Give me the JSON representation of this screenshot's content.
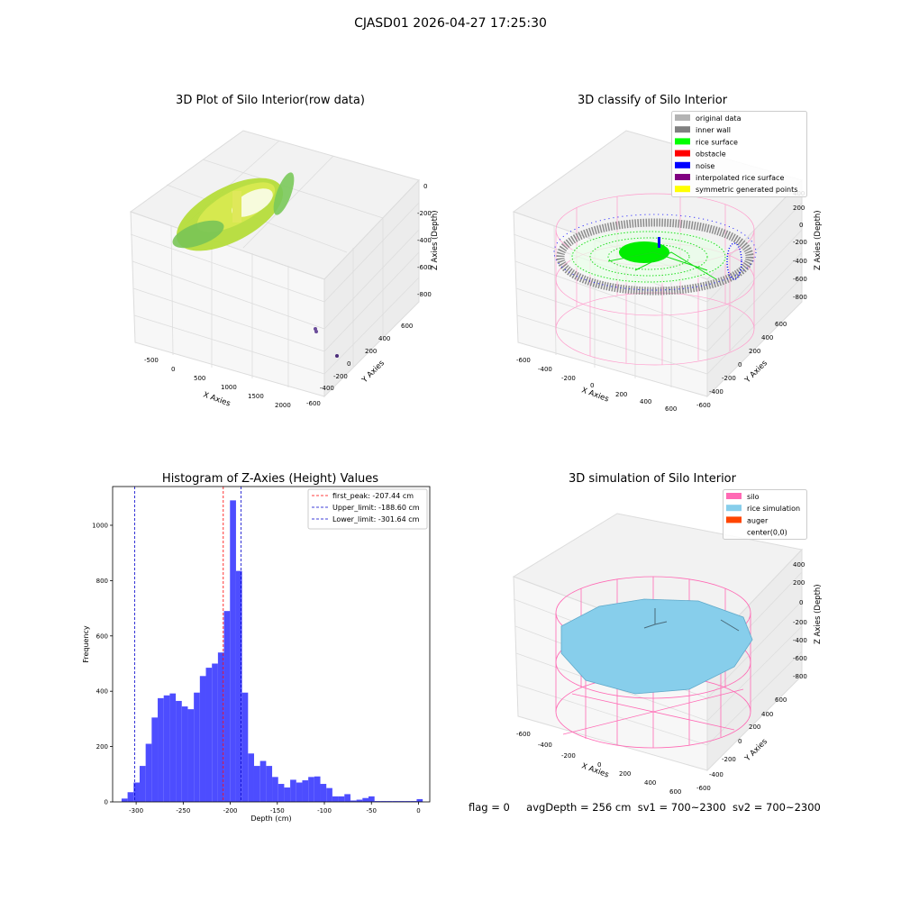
{
  "figure_title": "CJASD01 2026-04-27 17:25:30",
  "status": {
    "flag": "flag = 0",
    "avg_depth": "avgDepth = 256 cm",
    "sv1": "sv1 = 700~2300",
    "sv2": "sv2 = 700~2300"
  },
  "colors": {
    "histogram_bar": "#4d4dff",
    "first_peak": "#ff0000",
    "limit_lines": "#0000cc",
    "original_data": "#b3b3b3",
    "inner_wall": "#808080",
    "rice_surface": "#00ff00",
    "obstacle": "#ff0000",
    "noise": "#0000ff",
    "interpolated": "#800080",
    "symmetric": "#ffff00",
    "silo": "#ff69b4",
    "rice_simulation": "#87ceeb",
    "auger": "#ff4500"
  },
  "chart_data": [
    {
      "type": "scatter",
      "projection": "3d",
      "title": "3D Plot of Silo Interior(row data)",
      "xlabel": "X Axies",
      "ylabel": "Y Axies",
      "zlabel": "Z Axies (Depth)",
      "x_ticks": [
        "-500",
        "0",
        "500",
        "1000",
        "1500",
        "2000"
      ],
      "y_ticks": [
        "-600",
        "-400",
        "-200",
        "0",
        "200",
        "400",
        "600"
      ],
      "z_ticks": [
        "0",
        "-200",
        "-400",
        "-600",
        "-800"
      ]
    },
    {
      "type": "scatter",
      "projection": "3d",
      "title": "3D classify of Silo Interior",
      "xlabel": "X Axies",
      "ylabel": "Y Axies",
      "zlabel": "Z Axies (Depth)",
      "x_ticks": [
        "-600",
        "-400",
        "-200",
        "0",
        "200",
        "400",
        "600"
      ],
      "y_ticks": [
        "-600",
        "-400",
        "-200",
        "0",
        "200",
        "400",
        "600"
      ],
      "z_ticks": [
        "400",
        "200",
        "0",
        "-200",
        "-400",
        "-600",
        "-800"
      ],
      "legend_position": "top-right",
      "legend": [
        {
          "name": "original data",
          "color": "#b3b3b3"
        },
        {
          "name": "inner wall",
          "color": "#808080"
        },
        {
          "name": "rice surface",
          "color": "#00ff00"
        },
        {
          "name": "obstacle",
          "color": "#ff0000"
        },
        {
          "name": "noise",
          "color": "#0000ff"
        },
        {
          "name": "interpolated rice surface",
          "color": "#800080"
        },
        {
          "name": "symmetric generated points",
          "color": "#ffff00"
        }
      ]
    },
    {
      "type": "bar",
      "title": "Histogram of Z-Axies (Height) Values",
      "xlabel": "Depth (cm)",
      "ylabel": "Frequency",
      "xlim": [
        -325,
        12
      ],
      "ylim": [
        0,
        1140
      ],
      "x_ticks": [
        -300,
        -250,
        -200,
        -150,
        -100,
        -50,
        0
      ],
      "y_ticks": [
        0,
        200,
        400,
        600,
        800,
        1000
      ],
      "bins": {
        "start": -315.5,
        "width": 6.4,
        "counts": [
          12,
          35,
          70,
          130,
          210,
          305,
          375,
          385,
          392,
          365,
          345,
          335,
          395,
          455,
          485,
          500,
          540,
          690,
          1090,
          835,
          395,
          175,
          130,
          148,
          130,
          90,
          65,
          52,
          80,
          70,
          78,
          90,
          92,
          65,
          50,
          20,
          20,
          28,
          5,
          8,
          14,
          20,
          3,
          3,
          3,
          3,
          3,
          3,
          3,
          10
        ]
      },
      "vlines": [
        {
          "label": "first_peak: -207.44 cm",
          "x": -207.44,
          "color": "#ff0000"
        },
        {
          "label": "Upper_limit: -188.60 cm",
          "x": -188.6,
          "color": "#0000cc"
        },
        {
          "label": "Lower_limit: -301.64 cm",
          "x": -301.64,
          "color": "#0000cc"
        }
      ],
      "legend_position": "top-right"
    },
    {
      "type": "surface",
      "projection": "3d",
      "title": "3D simulation of Silo Interior",
      "xlabel": "X Axies",
      "ylabel": "Y Axies",
      "zlabel": "Z Axies (Depth)",
      "x_ticks": [
        "-600",
        "-400",
        "-200",
        "0",
        "200",
        "400",
        "600"
      ],
      "y_ticks": [
        "-600",
        "-400",
        "-200",
        "0",
        "200",
        "400",
        "600"
      ],
      "z_ticks": [
        "400",
        "200",
        "0",
        "-200",
        "-400",
        "-600",
        "-800"
      ],
      "legend_position": "top-right",
      "legend": [
        {
          "name": "silo",
          "color": "#ff69b4"
        },
        {
          "name": "rice simulation",
          "color": "#87ceeb"
        },
        {
          "name": "auger",
          "color": "#ff4500"
        },
        {
          "name": "center(0,0)",
          "color": "#ffffff"
        }
      ]
    }
  ]
}
